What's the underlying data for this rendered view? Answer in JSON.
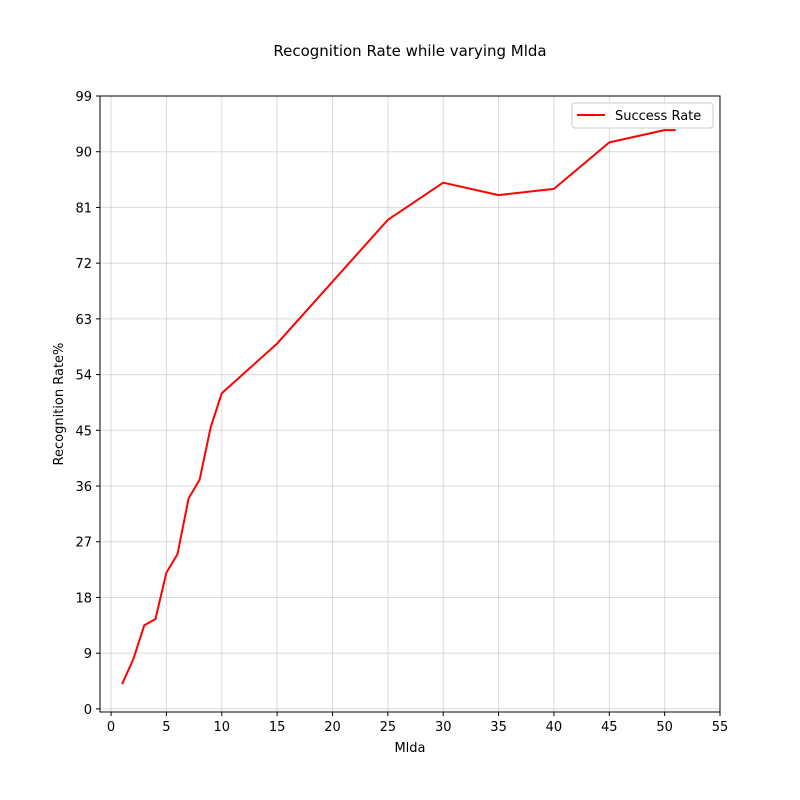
{
  "chart_data": {
    "type": "line",
    "title": "Recognition Rate while varying Mlda",
    "xlabel": "Mlda",
    "ylabel": "Recognition Rate%",
    "xlim": [
      -1,
      55
    ],
    "ylim": [
      -0.5,
      99
    ],
    "xticks": [
      0,
      5,
      10,
      15,
      20,
      25,
      30,
      35,
      40,
      45,
      50,
      55
    ],
    "yticks": [
      0,
      9,
      18,
      27,
      36,
      45,
      54,
      63,
      72,
      81,
      90,
      99
    ],
    "grid": true,
    "legend_position": "top-right",
    "series": [
      {
        "name": "Success Rate",
        "color": "#ff0000",
        "x": [
          1,
          2,
          3,
          4,
          5,
          6,
          7,
          8,
          9,
          10,
          15,
          20,
          25,
          30,
          35,
          40,
          45,
          50,
          51
        ],
        "y": [
          4,
          8,
          13.5,
          14.5,
          22,
          25,
          34,
          37,
          45.5,
          51,
          59,
          69,
          79,
          85,
          83,
          84,
          91.5,
          93.5,
          93.5
        ]
      }
    ]
  }
}
